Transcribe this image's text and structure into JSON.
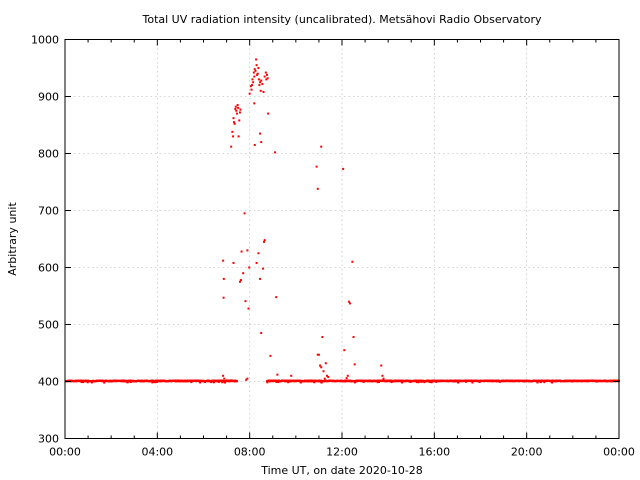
{
  "chart_data": {
    "type": "scatter",
    "title": "Total UV radiation intensity (uncalibrated). Metsähovi Radio Observatory",
    "xlabel": "Time UT, on date 2020-10-28",
    "ylabel": "Arbitrary unit",
    "xlim": [
      0,
      24
    ],
    "ylim": [
      300,
      1000
    ],
    "x_ticks": [
      0,
      4,
      8,
      12,
      16,
      20,
      24
    ],
    "x_tick_labels": [
      "00:00",
      "04:00",
      "08:00",
      "12:00",
      "16:00",
      "20:00",
      "00:00"
    ],
    "y_ticks": [
      300,
      400,
      500,
      600,
      700,
      800,
      900,
      1000
    ],
    "y_tick_labels": [
      "300",
      "400",
      "500",
      "600",
      "700",
      "800",
      "900",
      "1000"
    ],
    "grid": true,
    "marker_color": "#ff0000",
    "baseline": {
      "value": 401,
      "x_start": 0.05,
      "x_end": 24,
      "gap": [
        7.45,
        8.75
      ],
      "note": "dense series of ~1-minute readings near 401"
    },
    "series": [
      {
        "name": "UV intensity",
        "points": [
          [
            6.85,
            410
          ],
          [
            6.9,
            405
          ],
          [
            7.0,
            402
          ],
          [
            7.1,
            401
          ],
          [
            7.2,
            402
          ],
          [
            6.85,
            612
          ],
          [
            6.88,
            580
          ],
          [
            6.87,
            547
          ],
          [
            7.2,
            812
          ],
          [
            7.25,
            838
          ],
          [
            7.28,
            830
          ],
          [
            7.3,
            862
          ],
          [
            7.32,
            855
          ],
          [
            7.35,
            852
          ],
          [
            7.38,
            878
          ],
          [
            7.4,
            882
          ],
          [
            7.42,
            875
          ],
          [
            7.45,
            870
          ],
          [
            7.48,
            885
          ],
          [
            7.5,
            880
          ],
          [
            7.52,
            830
          ],
          [
            7.55,
            858
          ],
          [
            7.58,
            872
          ],
          [
            7.6,
            877
          ],
          [
            7.3,
            608
          ],
          [
            7.58,
            575
          ],
          [
            7.62,
            578
          ],
          [
            7.65,
            628
          ],
          [
            7.72,
            590
          ],
          [
            7.78,
            695
          ],
          [
            7.82,
            541
          ],
          [
            7.9,
            630
          ],
          [
            7.95,
            528
          ],
          [
            7.98,
            600
          ],
          [
            7.85,
            403
          ],
          [
            7.9,
            405
          ],
          [
            8.0,
            905
          ],
          [
            8.05,
            918
          ],
          [
            8.08,
            912
          ],
          [
            8.1,
            920
          ],
          [
            8.12,
            930
          ],
          [
            8.15,
            925
          ],
          [
            8.18,
            942
          ],
          [
            8.2,
            935
          ],
          [
            8.22,
            948
          ],
          [
            8.25,
            945
          ],
          [
            8.28,
            965
          ],
          [
            8.3,
            955
          ],
          [
            8.32,
            938
          ],
          [
            8.35,
            940
          ],
          [
            8.38,
            950
          ],
          [
            8.4,
            930
          ],
          [
            8.42,
            920
          ],
          [
            8.45,
            925
          ],
          [
            8.48,
            910
          ],
          [
            8.5,
            928
          ],
          [
            8.55,
            922
          ],
          [
            8.6,
            908
          ],
          [
            8.65,
            935
          ],
          [
            8.7,
            942
          ],
          [
            8.72,
            930
          ],
          [
            8.75,
            938
          ],
          [
            8.78,
            932
          ],
          [
            8.2,
            888
          ],
          [
            8.22,
            815
          ],
          [
            8.45,
            835
          ],
          [
            8.5,
            820
          ],
          [
            8.8,
            870
          ],
          [
            9.1,
            802
          ],
          [
            8.3,
            608
          ],
          [
            8.38,
            625
          ],
          [
            8.45,
            580
          ],
          [
            8.5,
            485
          ],
          [
            8.58,
            598
          ],
          [
            8.62,
            645
          ],
          [
            8.65,
            648
          ],
          [
            8.9,
            445
          ],
          [
            9.15,
            548
          ],
          [
            9.2,
            412
          ],
          [
            9.8,
            410
          ],
          [
            10.9,
            777
          ],
          [
            10.95,
            738
          ],
          [
            11.1,
            812
          ],
          [
            10.95,
            447
          ],
          [
            11.0,
            447
          ],
          [
            11.05,
            428
          ],
          [
            11.1,
            425
          ],
          [
            11.15,
            478
          ],
          [
            11.2,
            418
          ],
          [
            11.25,
            405
          ],
          [
            11.3,
            432
          ],
          [
            11.35,
            410
          ],
          [
            11.4,
            408
          ],
          [
            12.05,
            773
          ],
          [
            12.1,
            455
          ],
          [
            12.3,
            540
          ],
          [
            12.35,
            537
          ],
          [
            12.45,
            610
          ],
          [
            12.5,
            478
          ],
          [
            12.55,
            430
          ],
          [
            12.2,
            406
          ],
          [
            12.25,
            410
          ],
          [
            13.7,
            428
          ],
          [
            13.75,
            410
          ],
          [
            13.8,
            405
          ]
        ]
      }
    ]
  }
}
